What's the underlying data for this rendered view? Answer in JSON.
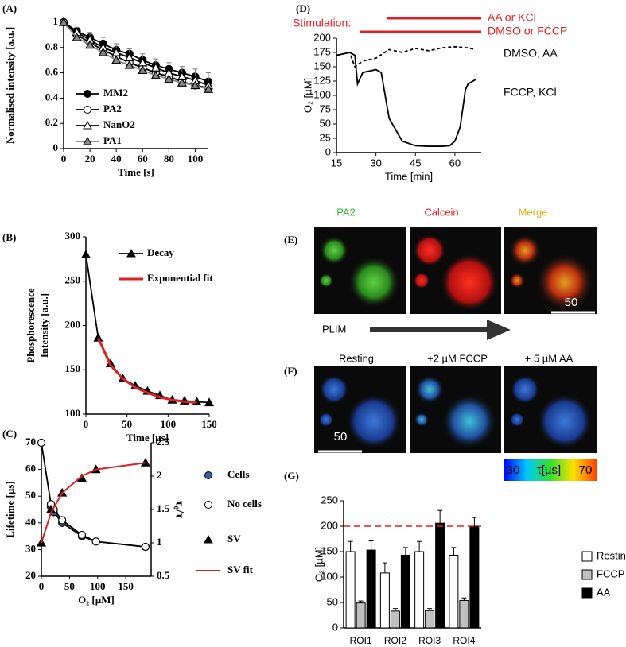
{
  "chart_data": [
    {
      "type": "line",
      "panel": "(A)",
      "x_label": "Time [s]",
      "y_label": "Normalised intensity [a.u.]",
      "xlim": [
        0,
        110
      ],
      "xticks": [
        0,
        20,
        40,
        60,
        80,
        100
      ],
      "ylim": [
        0,
        1
      ],
      "yticks": [
        0,
        0.2,
        0.4,
        0.6,
        0.8,
        1
      ],
      "x": [
        0,
        10,
        20,
        30,
        40,
        50,
        60,
        70,
        80,
        90,
        100,
        110
      ],
      "series": [
        {
          "name": "MM2",
          "color": "#000000",
          "marker": "circle",
          "values": [
            1,
            0.93,
            0.88,
            0.83,
            0.78,
            0.75,
            0.7,
            0.66,
            0.63,
            0.6,
            0.57,
            0.53
          ]
        },
        {
          "name": "PA2",
          "color": "#000000",
          "marker": "circle-open",
          "values": [
            1,
            0.9,
            0.84,
            0.78,
            0.73,
            0.68,
            0.64,
            0.6,
            0.57,
            0.53,
            0.5,
            0.48
          ],
          "errors": [
            0,
            0.06,
            0.08,
            0.1,
            0.1,
            0.11,
            0.11,
            0.11,
            0.11,
            0.12,
            0.13,
            0.12
          ]
        },
        {
          "name": "NanO2",
          "color": "#000000",
          "marker": "triangle-open",
          "values": [
            1,
            0.92,
            0.86,
            0.8,
            0.76,
            0.72,
            0.68,
            0.64,
            0.6,
            0.57,
            0.54,
            0.5
          ]
        },
        {
          "name": "PA1",
          "color": "#888888",
          "marker": "triangle",
          "values": [
            1,
            0.88,
            0.82,
            0.76,
            0.7,
            0.66,
            0.62,
            0.58,
            0.55,
            0.52,
            0.5,
            0.47
          ]
        }
      ]
    },
    {
      "type": "line",
      "panel": "(B)",
      "x_label": "Time [µs]",
      "y_label": [
        "Phosphorescence",
        "Intensity [a.u.]"
      ],
      "xlim": [
        0,
        150
      ],
      "xticks": [
        0,
        50,
        100,
        150
      ],
      "ylim": [
        100,
        300
      ],
      "yticks": [
        100,
        150,
        200,
        250,
        300
      ],
      "series": [
        {
          "name": "Decay",
          "color": "#000000",
          "marker": "triangle",
          "x": [
            0,
            15,
            30,
            45,
            60,
            75,
            90,
            105,
            120,
            135,
            150
          ],
          "values": [
            280,
            186,
            157,
            140,
            132,
            126,
            121,
            116,
            115,
            114,
            113
          ]
        },
        {
          "name": "Exponential fit",
          "color": "#e02020",
          "marker": "none",
          "width": 3,
          "x": [
            15,
            30,
            45,
            60,
            75,
            90,
            105,
            120,
            135
          ],
          "values": [
            186,
            155,
            140,
            130,
            124,
            119,
            116,
            114,
            113
          ]
        }
      ]
    },
    {
      "type": "line",
      "panel": "(C)",
      "x_label": "O₂ [µM]",
      "y_label": "Lifetime [µs]",
      "y2_label": "τ₀/τ",
      "xlim": [
        0,
        195
      ],
      "xticks": [
        0,
        50,
        100,
        150
      ],
      "ylim": [
        20,
        70
      ],
      "yticks": [
        20,
        30,
        40,
        50,
        60,
        70
      ],
      "y2lim": [
        0.5,
        2.5
      ],
      "y2ticks": [
        0.5,
        1,
        1.5,
        2,
        2.5
      ],
      "series": [
        {
          "name": "Cells",
          "color": "#3a5f9a",
          "marker": "circle",
          "x": [
            17,
            22,
            37,
            72,
            97,
            185
          ],
          "values": [
            46,
            44,
            40,
            35,
            33,
            31
          ]
        },
        {
          "name": "No cells",
          "color": "#000000",
          "marker": "circle-open",
          "x": [
            0,
            17,
            22,
            37,
            72,
            97,
            185
          ],
          "values": [
            70,
            47,
            45,
            41,
            35.5,
            33,
            31
          ]
        },
        {
          "name": "SV",
          "color": "#000000",
          "marker": "triangle",
          "line": false,
          "axis": "y2",
          "x": [
            0,
            17,
            37,
            72,
            97,
            185
          ],
          "values": [
            1,
            1.5,
            1.75,
            1.97,
            2.1,
            2.2
          ]
        },
        {
          "name": "SV fit",
          "color": "#e02020",
          "marker": "none",
          "width": 2,
          "axis": "y2",
          "x": [
            0,
            17,
            37,
            72,
            97,
            185
          ],
          "values": [
            1,
            1.45,
            1.75,
            2,
            2.1,
            2.2
          ]
        }
      ]
    },
    {
      "type": "line",
      "panel": "(D)",
      "x_label": "Time [min]",
      "y_label": "O₂ [µM]",
      "annotation": "Stimulation:",
      "xlim": [
        15,
        70
      ],
      "xticks": [
        15,
        30,
        45,
        60
      ],
      "ylim": [
        0,
        200
      ],
      "yticks": [
        0,
        25,
        50,
        75,
        100,
        125,
        150,
        175,
        200
      ],
      "stimulations": [
        {
          "label": "AA or KCl",
          "start": 34,
          "end": 70
        },
        {
          "label": "DMSO or FCCP",
          "start": 24,
          "end": 70
        }
      ],
      "series": [
        {
          "name": "DMSO, AA",
          "color": "#000000",
          "marker": "none",
          "dash": true,
          "x": [
            15,
            20,
            22,
            25,
            30,
            35,
            40,
            45,
            50,
            55,
            60,
            65,
            68
          ],
          "values": [
            170,
            175,
            150,
            160,
            165,
            180,
            175,
            182,
            178,
            183,
            185,
            183,
            180
          ]
        },
        {
          "name": "FCCP, KCl",
          "color": "#000000",
          "marker": "none",
          "x": [
            15,
            20,
            22,
            23,
            25,
            30,
            32,
            35,
            40,
            45,
            50,
            55,
            58,
            60,
            62,
            64,
            65,
            68
          ],
          "values": [
            170,
            175,
            170,
            120,
            140,
            145,
            140,
            60,
            20,
            12,
            11,
            11,
            12,
            20,
            45,
            110,
            120,
            128
          ]
        }
      ]
    },
    {
      "type": "bar",
      "panel": "(G)",
      "y_label": "O₂ [µM]",
      "categories": [
        "ROI1",
        "ROI2",
        "ROI3",
        "ROI4"
      ],
      "ylim": [
        0,
        250
      ],
      "yticks": [
        0,
        50,
        100,
        150,
        200,
        250
      ],
      "reference_line": 200,
      "series": [
        {
          "name": "Resting",
          "color": "#ffffff",
          "values": [
            150,
            108,
            150,
            143
          ],
          "errors": [
            20,
            20,
            20,
            15
          ]
        },
        {
          "name": "FCCP",
          "color": "#c0c0c0",
          "values": [
            49,
            33,
            34,
            54
          ],
          "errors": [
            4,
            5,
            4,
            5
          ]
        },
        {
          "name": "AA",
          "color": "#000000",
          "values": [
            153,
            143,
            206,
            200
          ],
          "errors": [
            18,
            15,
            25,
            17
          ]
        }
      ]
    }
  ],
  "micrographs": {
    "e": {
      "panel": "(E)",
      "labels": [
        "PA2",
        "Calcein",
        "Merge"
      ],
      "scale": "50",
      "arrow_label": "PLIM"
    },
    "f": {
      "panel": "(F)",
      "labels": [
        "Resting",
        "+2 µM FCCP",
        "+ 5 µM AA"
      ],
      "scale": "50"
    },
    "colorbar": {
      "min": "30",
      "title": "τ[µs]",
      "max": "70"
    }
  }
}
